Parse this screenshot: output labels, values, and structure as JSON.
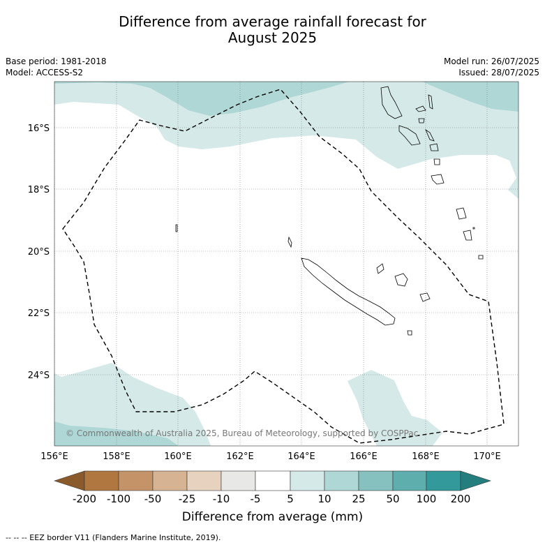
{
  "header": {
    "title_line1": "Difference from average rainfall forecast for",
    "title_line2": "August 2025",
    "base_period": "Base period: 1981-2018",
    "model": "Model: ACCESS-S2",
    "model_run": "Model run: 26/07/2025",
    "issued": "Issued: 28/07/2025"
  },
  "map": {
    "lon_labels": [
      "156°E",
      "158°E",
      "160°E",
      "162°E",
      "164°E",
      "166°E",
      "168°E",
      "170°E"
    ],
    "lat_labels": [
      "16°S",
      "18°S",
      "20°S",
      "22°S",
      "24°S"
    ],
    "copyright": "© Commonwealth of Australia 2025, Bureau of Meteorology, supported by COSPPac",
    "colors": {
      "light_teal": "#d5eae8",
      "mid_teal": "#afd7d6",
      "coast": "#000000",
      "eez": "#000000"
    }
  },
  "colorbar": {
    "labels": [
      "-200",
      "-100",
      "-50",
      "-25",
      "-10",
      "-5",
      "5",
      "10",
      "25",
      "50",
      "100",
      "200"
    ],
    "colors": [
      "#8b5a2b",
      "#b07840",
      "#c49468",
      "#d5b393",
      "#e6d2bf",
      "#e8e8e6",
      "#ffffff",
      "#d5eae8",
      "#afd7d6",
      "#86c0bf",
      "#5eaeae",
      "#34999a",
      "#247e7e"
    ],
    "title": "Difference from average (mm)"
  },
  "footnote": "--  --  -- EEZ border V11 (Flanders Marine Institute, 2019)."
}
